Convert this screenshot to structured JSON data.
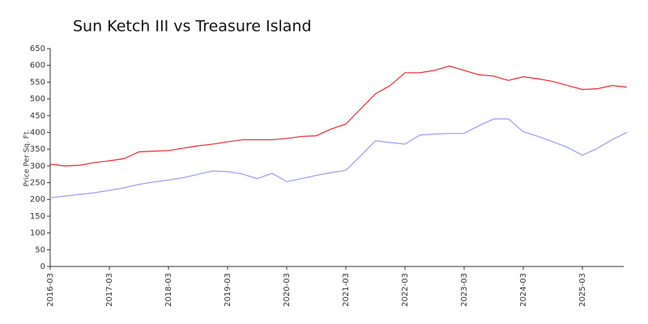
{
  "chart_data": {
    "type": "line",
    "title": "Sun Ketch III vs Treasure Island",
    "y_label": "Price Per Sq. Ft.",
    "categories": [
      "2016-03",
      null,
      null,
      null,
      "2017-03",
      null,
      null,
      null,
      "2018-03",
      null,
      null,
      null,
      "2019-03",
      null,
      null,
      null,
      "2020-03",
      null,
      null,
      null,
      "2021-03",
      null,
      null,
      null,
      "2022-03",
      null,
      null,
      null,
      "2023-03",
      null,
      null,
      null,
      "2024-03",
      null,
      null,
      null,
      "2025-03",
      null,
      null,
      null
    ],
    "series": [
      {
        "color": "#e8282e",
        "values": [
          305,
          300,
          302,
          310,
          315,
          322,
          342,
          344,
          346,
          353,
          360,
          365,
          372,
          378,
          378,
          378,
          382,
          388,
          390,
          410,
          425,
          470,
          515,
          540,
          578,
          578,
          585,
          598,
          585,
          572,
          568,
          555,
          566,
          560,
          552,
          540,
          528,
          530,
          540,
          535
        ]
      },
      {
        "color": "#9b9bef",
        "values": [
          205,
          210,
          215,
          220,
          227,
          235,
          245,
          252,
          258,
          265,
          275,
          285,
          283,
          276,
          262,
          278,
          253,
          262,
          272,
          280,
          287,
          330,
          375,
          370,
          365,
          392,
          395,
          397,
          397,
          420,
          440,
          440,
          402,
          388,
          372,
          355,
          332,
          352,
          378,
          400
        ]
      }
    ],
    "ylim": [
      0,
      650
    ],
    "yticks": [
      0,
      50,
      100,
      150,
      200,
      250,
      300,
      350,
      400,
      450,
      500,
      550,
      600,
      650
    ]
  }
}
